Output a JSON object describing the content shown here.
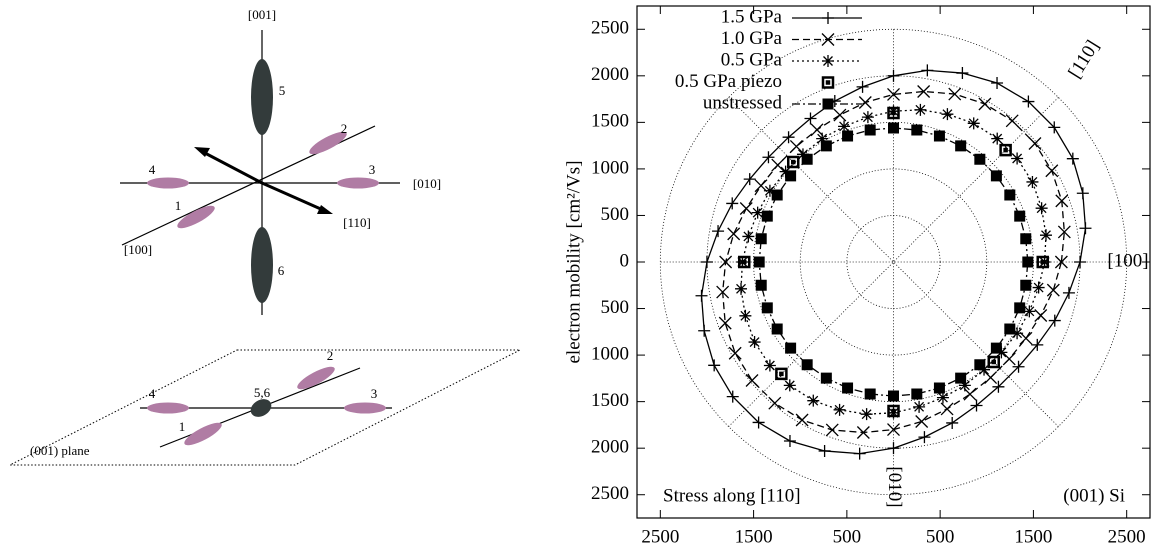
{
  "diagram": {
    "top_labels": [
      "[001]",
      "5",
      "2",
      "4",
      "3",
      "[010]",
      "1",
      "[110]",
      "[100]",
      "6"
    ],
    "bottom_labels": [
      "2",
      "4",
      "5,6",
      "3",
      "1",
      "(001) plane"
    ]
  },
  "chart_data": {
    "type": "polar",
    "y_label": "electron mobility [cm²/Vs]",
    "annotations": [
      "[110]",
      "[100]",
      "[010]",
      "Stress along [110]",
      "(001) Si"
    ],
    "xlim": [
      -2750,
      2750
    ],
    "ylim": [
      -2750,
      2750
    ],
    "xticks": [
      {
        "value": -2500,
        "label": "2500"
      },
      {
        "value": -1500,
        "label": "1500"
      },
      {
        "value": -500,
        "label": "500"
      },
      500,
      1500,
      2500
    ],
    "yticks": [
      2500,
      2000,
      1500,
      1000,
      500,
      0,
      {
        "value": -500,
        "label": "500"
      },
      {
        "value": -1000,
        "label": "1000"
      },
      {
        "value": -1500,
        "label": "1500"
      },
      {
        "value": -2000,
        "label": "2000"
      },
      {
        "value": -2500,
        "label": "2500"
      }
    ],
    "rgrid": [
      500,
      1000,
      1500,
      2000,
      2500
    ],
    "thetagrid": [
      0,
      45,
      90,
      135
    ],
    "theta": [
      0,
      10,
      20,
      30,
      40,
      50,
      60,
      70,
      80,
      90,
      100,
      110,
      120,
      130,
      140,
      150,
      160,
      170,
      180,
      190,
      200,
      210,
      220,
      230,
      240,
      250,
      260,
      270,
      280,
      290,
      300,
      310,
      320,
      330,
      340,
      350
    ],
    "series": [
      {
        "name": "1.5 GPa",
        "color": "#000000",
        "marker": "plus",
        "dash": "none",
        "values": [
          2000,
          2090,
          2160,
          2220,
          2250,
          2250,
          2220,
          2160,
          2090,
          2000,
          1910,
          1840,
          1780,
          1750,
          1750,
          1780,
          1840,
          1910,
          2000,
          2090,
          2160,
          2220,
          2250,
          2250,
          2220,
          2160,
          2090,
          2000,
          1910,
          1840,
          1780,
          1750,
          1750,
          1780,
          1840,
          1910
        ]
      },
      {
        "name": "1.0 GPa",
        "color": "#000000",
        "marker": "cross",
        "dash": "7 4",
        "values": [
          1800,
          1860,
          1920,
          1960,
          1980,
          1980,
          1960,
          1920,
          1860,
          1800,
          1740,
          1680,
          1640,
          1620,
          1620,
          1640,
          1680,
          1740,
          1800,
          1860,
          1920,
          1960,
          1980,
          1980,
          1960,
          1920,
          1860,
          1800,
          1740,
          1680,
          1640,
          1620,
          1620,
          1640,
          1680,
          1740
        ]
      },
      {
        "name": "0.5 GPa",
        "color": "#000000",
        "marker": "star",
        "dash": "2 3",
        "values": [
          1620,
          1660,
          1690,
          1720,
          1730,
          1730,
          1720,
          1690,
          1660,
          1620,
          1580,
          1550,
          1530,
          1510,
          1510,
          1530,
          1550,
          1580,
          1620,
          1660,
          1690,
          1720,
          1730,
          1730,
          1720,
          1690,
          1660,
          1620,
          1580,
          1550,
          1530,
          1510,
          1510,
          1530,
          1550,
          1580
        ]
      },
      {
        "name": "0.5 GPa piezo",
        "color": "#000000",
        "marker": "boxdot",
        "theta": [
          0,
          45,
          90,
          135,
          180,
          225,
          270,
          315
        ],
        "values": [
          1600,
          1700,
          1600,
          1520,
          1600,
          1700,
          1600,
          1520
        ]
      },
      {
        "name": "unstressed",
        "color": "#000000",
        "marker": "box",
        "dash": "8 3 2 3",
        "values": [
          1440,
          1440,
          1440,
          1440,
          1440,
          1440,
          1440,
          1440,
          1440,
          1440,
          1440,
          1440,
          1440,
          1440,
          1440,
          1440,
          1440,
          1440,
          1440,
          1440,
          1440,
          1440,
          1440,
          1440,
          1440,
          1440,
          1440,
          1440,
          1440,
          1440,
          1440,
          1440,
          1440,
          1440,
          1440,
          1440
        ]
      }
    ]
  }
}
